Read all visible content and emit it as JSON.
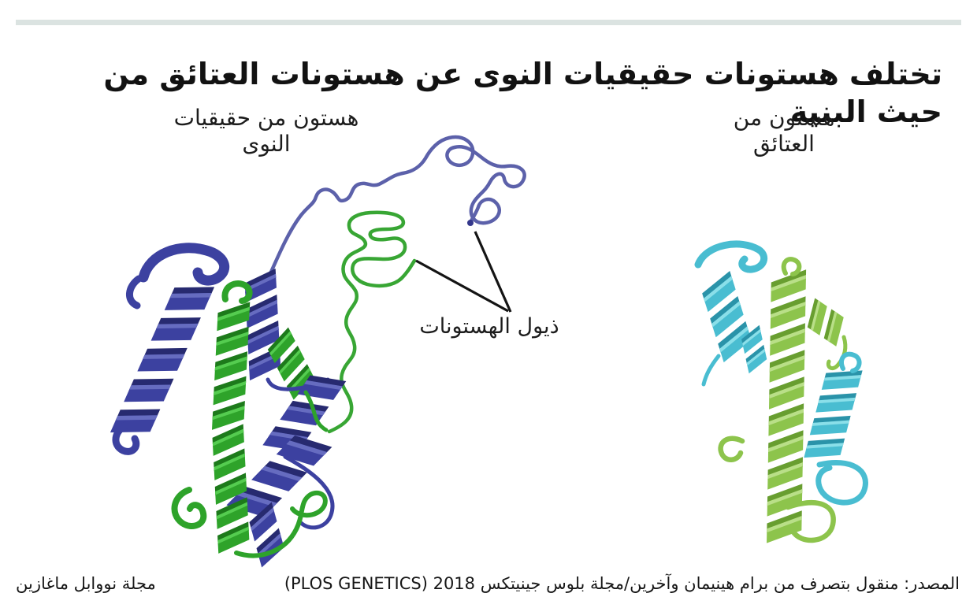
{
  "title": "تختلف هستونات حقيقيات النوى عن هستونات العتائق من حيث البنية",
  "labels": {
    "eukaryote": "هستون من حقيقيات النوى",
    "archaea": "هستون من العتائق",
    "tails": "ذيول الهستونات"
  },
  "footer": {
    "source": "المصدر: منقول بتصرف من برام هينيمان وآخرين/مجلة بلوس جينيتكس 2018 (PLOS GENETICS)",
    "credit": "مجلة نووابل ماغازين"
  },
  "colors": {
    "top_bar": "#dbe3e1",
    "eukaryote_blue": "#3c41a0",
    "eukaryote_green": "#2ea32a",
    "eukaryote_blue_tail": "#5c61aa",
    "eukaryote_green_tail": "#38a634",
    "archaea_cyan": "#49bdd1",
    "archaea_green": "#8dc44c",
    "pointer_line": "#141414"
  }
}
